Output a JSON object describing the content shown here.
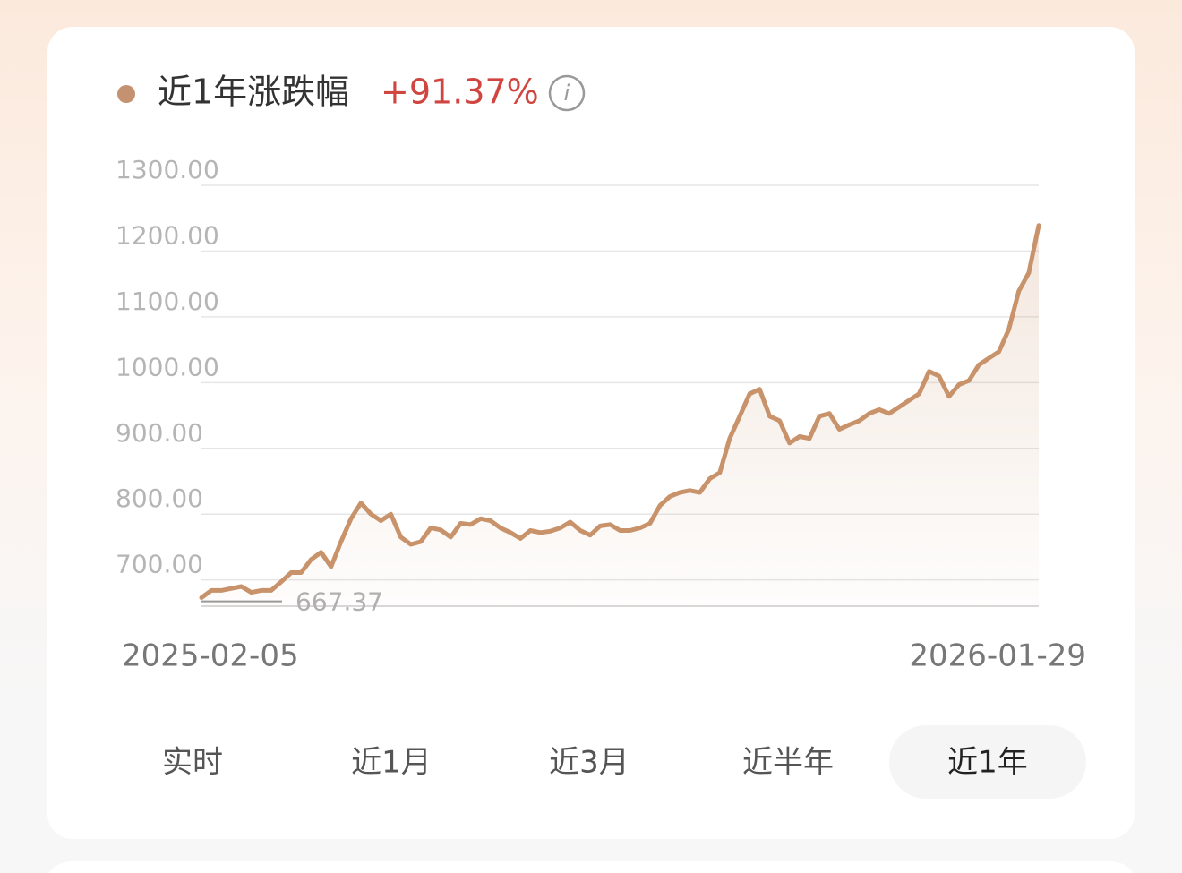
{
  "header": {
    "title": "近1年涨跌幅",
    "change": "+91.37%"
  },
  "chart_data": {
    "type": "line",
    "categories": [
      "2025-02-05",
      null,
      null,
      null,
      null,
      null,
      null,
      null,
      null,
      null,
      null,
      null,
      null,
      null,
      null,
      null,
      null,
      null,
      null,
      null,
      null,
      null,
      null,
      null,
      null,
      null,
      null,
      null,
      null,
      null,
      null,
      null,
      null,
      null,
      null,
      null,
      null,
      null,
      null,
      null,
      null,
      null,
      null,
      null,
      null,
      null,
      null,
      null,
      null,
      null,
      null,
      null,
      null,
      null,
      null,
      null,
      null,
      null,
      null,
      null,
      null,
      null,
      null,
      null,
      null,
      null,
      null,
      null,
      null,
      null,
      null,
      null,
      null,
      null,
      null,
      null,
      null,
      null,
      null,
      null,
      null,
      null,
      null,
      null,
      "2026-01-29"
    ],
    "series": [
      {
        "name": null,
        "color": "#c8926a",
        "values": [
          673,
          684,
          684,
          687,
          690,
          681,
          684,
          684,
          697,
          711,
          711,
          731,
          742,
          720,
          758,
          793,
          817,
          800,
          790,
          800,
          765,
          754,
          758,
          779,
          776,
          765,
          786,
          784,
          793,
          790,
          779,
          772,
          763,
          775,
          772,
          774,
          779,
          788,
          775,
          768,
          782,
          784,
          775,
          775,
          779,
          786,
          813,
          827,
          833,
          836,
          833,
          854,
          863,
          915,
          949,
          983,
          990,
          949,
          942,
          908,
          918,
          915,
          949,
          953,
          929,
          936,
          942,
          953,
          959,
          953,
          963,
          973,
          983,
          1017,
          1010,
          979,
          997,
          1003,
          1027,
          1037,
          1047,
          1081,
          1139,
          1167,
          1239
        ]
      }
    ],
    "min_annotation": {
      "value": 667.37,
      "label": "667.37"
    },
    "ylim": [
      660,
      1300
    ],
    "yticks": [
      {
        "value": 700,
        "label": "700.00"
      },
      {
        "value": 800,
        "label": "800.00"
      },
      {
        "value": 900,
        "label": "900.00"
      },
      {
        "value": 1000,
        "label": "1000.00"
      },
      {
        "value": 1100,
        "label": "1100.00"
      },
      {
        "value": 1200,
        "label": "1200.00"
      },
      {
        "value": 1300,
        "label": "1300.00"
      }
    ],
    "grid": true
  },
  "tabs": {
    "items": [
      "实时",
      "近1月",
      "近3月",
      "近半年",
      "近1年"
    ],
    "selected": 4
  }
}
